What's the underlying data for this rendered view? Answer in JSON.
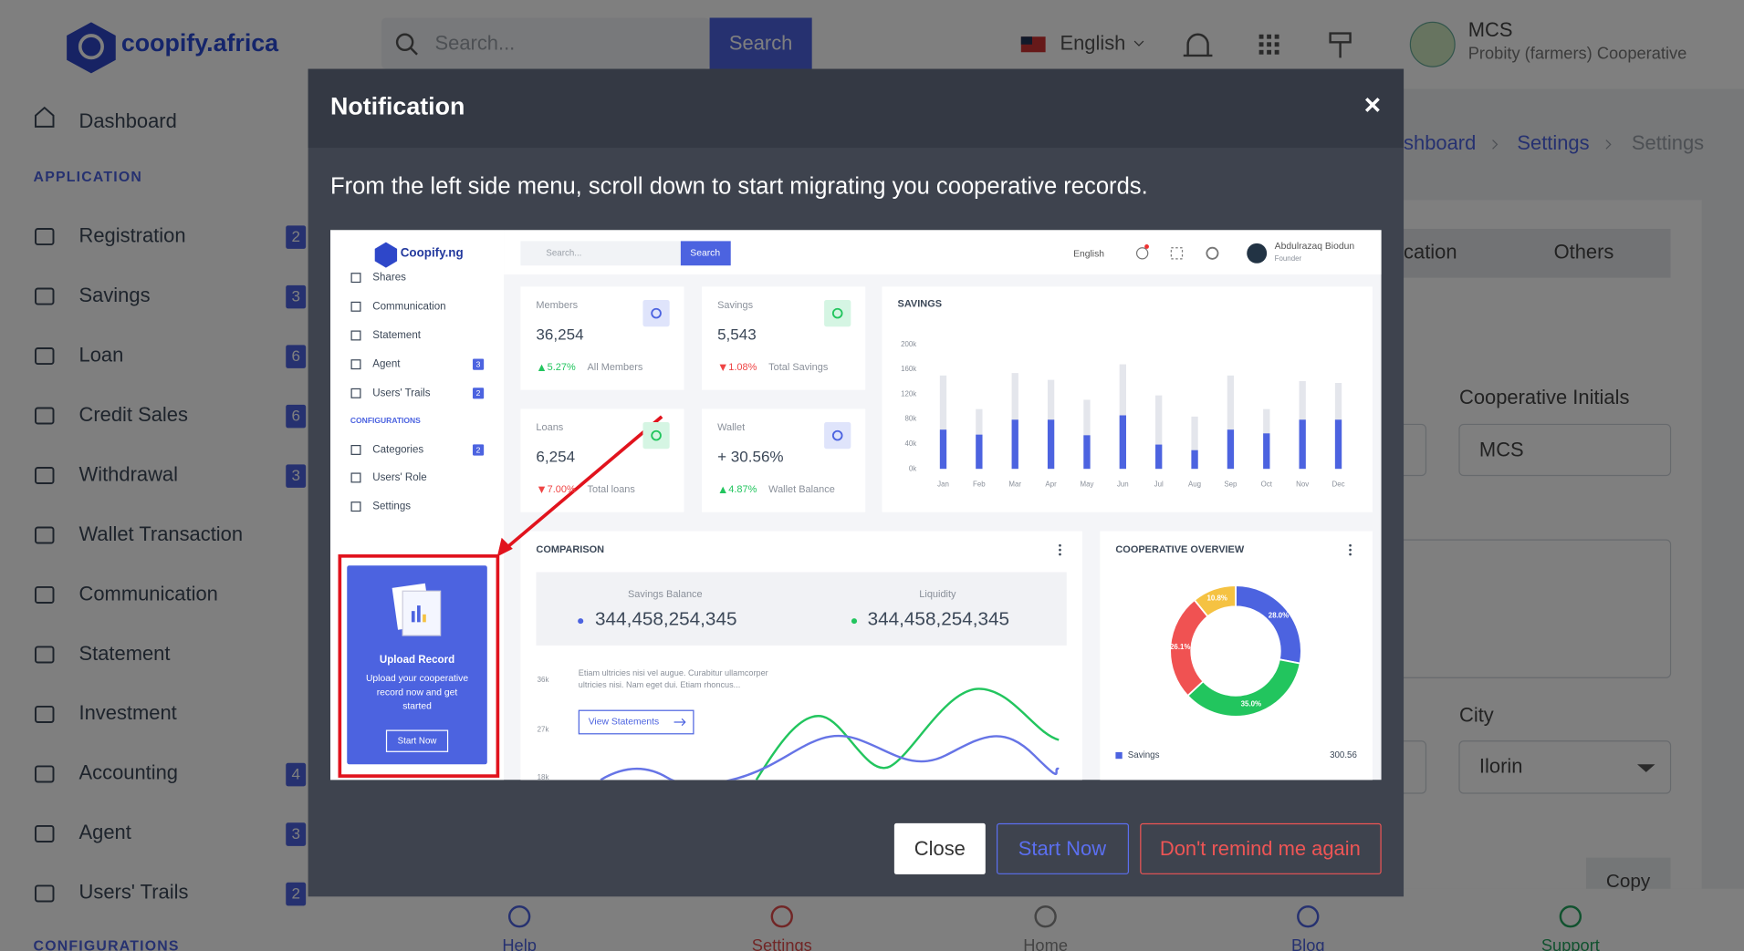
{
  "app": {
    "brand": "coopify.africa",
    "search_placeholder": "Search...",
    "search_button": "Search",
    "language": "English",
    "user_name": "MCS",
    "user_org": "Probity (farmers) Cooperative"
  },
  "sidebar": {
    "dashboard": "Dashboard",
    "section_application": "APPLICATION",
    "items": [
      {
        "label": "Registration",
        "badge": 2
      },
      {
        "label": "Savings",
        "badge": 3
      },
      {
        "label": "Loan",
        "badge": 6
      },
      {
        "label": "Credit Sales",
        "badge": 6
      },
      {
        "label": "Withdrawal",
        "badge": 3
      },
      {
        "label": "Wallet Transaction"
      },
      {
        "label": "Communication"
      },
      {
        "label": "Statement"
      },
      {
        "label": "Investment"
      },
      {
        "label": "Accounting",
        "badge": 4
      },
      {
        "label": "Agent",
        "badge": 3
      },
      {
        "label": "Users' Trails",
        "badge": 2
      }
    ],
    "section_configurations": "CONFIGURATIONS"
  },
  "breadcrumb": [
    "shboard",
    "Settings",
    "Settings"
  ],
  "settings_form": {
    "tabs": [
      "cation",
      "Others"
    ],
    "initials_label": "Cooperative Initials",
    "initials_value": "MCS",
    "city_label": "City",
    "city_value": "Ilorin",
    "copy_button": "Copy"
  },
  "bottom_nav": [
    "Help",
    "Settings",
    "Home",
    "Blog",
    "Support"
  ],
  "modal": {
    "title": "Notification",
    "close_icon": "×",
    "message": "From the left side menu, scroll down to start migrating you cooperative records.",
    "buttons": [
      "Close",
      "Start Now",
      "Don't remind me again"
    ],
    "preview": {
      "brand": "Coopify.ng",
      "search_placeholder": "Search...",
      "search_button": "Search",
      "language": "English",
      "user_name": "Abdulrazaq Biodun",
      "user_role": "Founder",
      "menu": [
        {
          "label": "Shares"
        },
        {
          "label": "Communication"
        },
        {
          "label": "Statement"
        },
        {
          "label": "Agent",
          "badge": 3
        },
        {
          "label": "Users' Trails",
          "badge": 2
        }
      ],
      "menu_section": "CONFIGURATIONS",
      "config_menu": [
        {
          "label": "Categories",
          "badge": 2
        },
        {
          "label": "Users' Role"
        },
        {
          "label": "Settings"
        }
      ],
      "upload_card": {
        "title": "Upload Record",
        "text": [
          "Upload your cooperative",
          "record now and get",
          "started"
        ],
        "button": "Start Now"
      },
      "stats": [
        {
          "label": "Members",
          "value": "36,254",
          "change": "5.27%",
          "trend": "up",
          "caption": "All Members"
        },
        {
          "label": "Savings",
          "value": "5,543",
          "change": "1.08%",
          "trend": "down",
          "caption": "Total Savings"
        },
        {
          "label": "Loans",
          "value": "6,254",
          "change": "7.00%",
          "trend": "down",
          "caption": "Total loans"
        },
        {
          "label": "Wallet",
          "value": "+ 30.56%",
          "change": "4.87%",
          "trend": "up",
          "caption": "Wallet Balance"
        }
      ],
      "savings_chart": {
        "type": "bar",
        "title": "SAVINGS",
        "categories": [
          "Jan",
          "Feb",
          "Mar",
          "Apr",
          "May",
          "Jun",
          "Jul",
          "Aug",
          "Sep",
          "Oct",
          "Nov",
          "Dec"
        ],
        "series": [
          {
            "color": "#e4e6ec",
            "values": [
              150,
              96,
              154,
              143,
              111,
              168,
              118,
              84,
              150,
              96,
              141,
              138
            ]
          },
          {
            "color": "#4c63e0",
            "values": [
              63,
              55,
              79,
              79,
              54,
              86,
              39,
              30,
              63,
              57,
              79,
              79
            ]
          }
        ],
        "ylim": [
          0,
          200
        ],
        "yticks": [
          {
            "value": 0,
            "label": "0k"
          },
          {
            "value": 40,
            "label": "40k"
          },
          {
            "value": 80,
            "label": "80k"
          },
          {
            "value": 120,
            "label": "120k"
          },
          {
            "value": 160,
            "label": "160k"
          },
          {
            "value": 200,
            "label": "200k"
          }
        ]
      },
      "comparison": {
        "title": "COMPARISON",
        "savings_label": "Savings Balance",
        "savings_value": "344,458,254,345",
        "liquidity_label": "Liquidity",
        "liquidity_value": "344,458,254,345",
        "text": [
          "Etiam ultricies nisi vel augue. Curabitur ullamcorper",
          "ultricies nisi. Nam eget dui. Etiam rhoncus..."
        ],
        "button": "View Statements",
        "yticks": [
          "36k",
          "27k",
          "18k"
        ]
      },
      "overview": {
        "type": "pie",
        "title": "COOPERATIVE OVERVIEW",
        "values": [
          28.0,
          35.0,
          26.1,
          10.8
        ],
        "value_labels": [
          "28.0%",
          "35.0%",
          "26.1%",
          "10.8%"
        ],
        "colors": [
          "#4c63e0",
          "#22c55e",
          "#f05252",
          "#f5c242"
        ],
        "legend_name": "Savings",
        "legend_value": "300.56"
      }
    }
  }
}
